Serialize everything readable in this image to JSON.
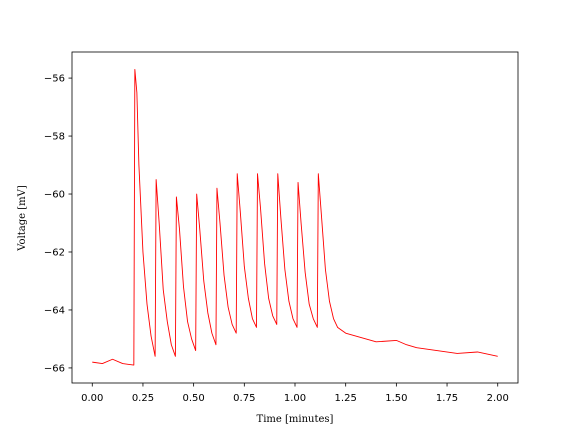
{
  "chart_data": {
    "type": "line",
    "x_label": "Time [minutes]",
    "y_label": "Voltage [mV]",
    "xlim": [
      -0.1,
      2.1
    ],
    "ylim": [
      -66.52,
      -55.1
    ],
    "xticks": [
      {
        "value": 0,
        "label": "0.00"
      },
      {
        "value": 0.25,
        "label": "0.25"
      },
      {
        "value": 0.5,
        "label": "0.50"
      },
      {
        "value": 0.75,
        "label": "0.75"
      },
      {
        "value": 1,
        "label": "1.00"
      },
      {
        "value": 1.25,
        "label": "1.25"
      },
      {
        "value": 1.5,
        "label": "1.50"
      },
      {
        "value": 1.75,
        "label": "1.75"
      },
      {
        "value": 2,
        "label": "2.00"
      }
    ],
    "yticks": [
      {
        "value": -56,
        "label": "−56"
      },
      {
        "value": -58,
        "label": "−58"
      },
      {
        "value": -60,
        "label": "−60"
      },
      {
        "value": -62,
        "label": "−62"
      },
      {
        "value": -64,
        "label": "−64"
      },
      {
        "value": -66,
        "label": "−66"
      }
    ],
    "grid": false,
    "series": [
      {
        "color": "#ff0000",
        "x": [
          0.0,
          0.05,
          0.1,
          0.15,
          0.205,
          0.21,
          0.22,
          0.23,
          0.25,
          0.27,
          0.29,
          0.31,
          0.315,
          0.33,
          0.35,
          0.37,
          0.39,
          0.41,
          0.415,
          0.43,
          0.45,
          0.47,
          0.49,
          0.51,
          0.515,
          0.53,
          0.55,
          0.57,
          0.59,
          0.61,
          0.615,
          0.63,
          0.65,
          0.67,
          0.69,
          0.71,
          0.715,
          0.73,
          0.75,
          0.77,
          0.79,
          0.81,
          0.815,
          0.83,
          0.85,
          0.87,
          0.89,
          0.91,
          0.915,
          0.93,
          0.95,
          0.97,
          0.99,
          1.01,
          1.015,
          1.03,
          1.05,
          1.07,
          1.09,
          1.11,
          1.115,
          1.13,
          1.15,
          1.17,
          1.19,
          1.21,
          1.25,
          1.3,
          1.35,
          1.4,
          1.5,
          1.55,
          1.6,
          1.7,
          1.8,
          1.9,
          2.0
        ],
        "values": [
          -65.8,
          -65.85,
          -65.7,
          -65.85,
          -65.9,
          -55.7,
          -56.5,
          -59,
          -62,
          -63.8,
          -64.9,
          -65.6,
          -59.5,
          -61,
          -63.3,
          -64.4,
          -65.2,
          -65.6,
          -60.1,
          -61.2,
          -63.2,
          -64.4,
          -65.0,
          -65.4,
          -60.0,
          -61.2,
          -63,
          -64.1,
          -64.8,
          -65.2,
          -59.8,
          -61,
          -62.8,
          -63.9,
          -64.5,
          -64.8,
          -59.3,
          -60.6,
          -62.5,
          -63.6,
          -64.3,
          -64.6,
          -59.3,
          -60.5,
          -62.4,
          -63.6,
          -64.2,
          -64.5,
          -59.3,
          -60.8,
          -62.6,
          -63.7,
          -64.3,
          -64.6,
          -59.6,
          -61,
          -62.7,
          -63.8,
          -64.3,
          -64.6,
          -59.3,
          -60.7,
          -62.6,
          -63.7,
          -64.3,
          -64.6,
          -64.8,
          -64.9,
          -65.0,
          -65.1,
          -65.05,
          -65.2,
          -65.3,
          -65.4,
          -65.5,
          -65.45,
          -65.6
        ]
      }
    ]
  }
}
